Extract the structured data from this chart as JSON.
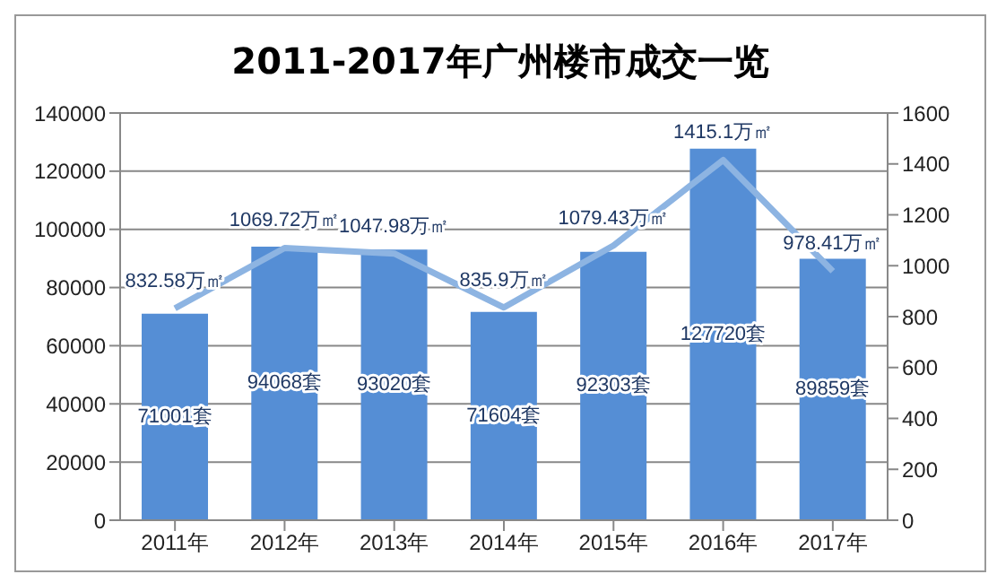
{
  "chart_data": {
    "type": "bar",
    "title": "2011-2017年广州楼市成交一览",
    "categories": [
      "2011年",
      "2012年",
      "2013年",
      "2014年",
      "2015年",
      "2016年",
      "2017年"
    ],
    "series": [
      {
        "color": "#558ed5",
        "values": [
          71001,
          94068,
          93020,
          71604,
          92303,
          127720,
          89859
        ],
        "value_labels": [
          "71001套",
          "94068套",
          "93020套",
          "71604套",
          "92303套",
          "127720套",
          "89859套"
        ]
      },
      {
        "type": "line",
        "axis": "y2",
        "color": "#8db4e2",
        "values": [
          832.58,
          1069.72,
          1047.98,
          835.9,
          1079.43,
          1415.1,
          978.41
        ],
        "value_labels": [
          "832.58万㎡",
          "1069.72万㎡",
          "1047.98万㎡",
          "835.9万㎡",
          "1079.43万㎡",
          "1415.1万㎡",
          "978.41万㎡"
        ]
      }
    ],
    "ylim": [
      0,
      140000
    ],
    "yticks": [
      0,
      20000,
      40000,
      60000,
      80000,
      100000,
      120000,
      140000
    ],
    "y2lim": [
      0,
      1600
    ],
    "y2ticks": [
      0,
      200,
      400,
      600,
      800,
      1000,
      1200,
      1400,
      1600
    ],
    "grid": "y",
    "marker": "none",
    "legend": false
  }
}
